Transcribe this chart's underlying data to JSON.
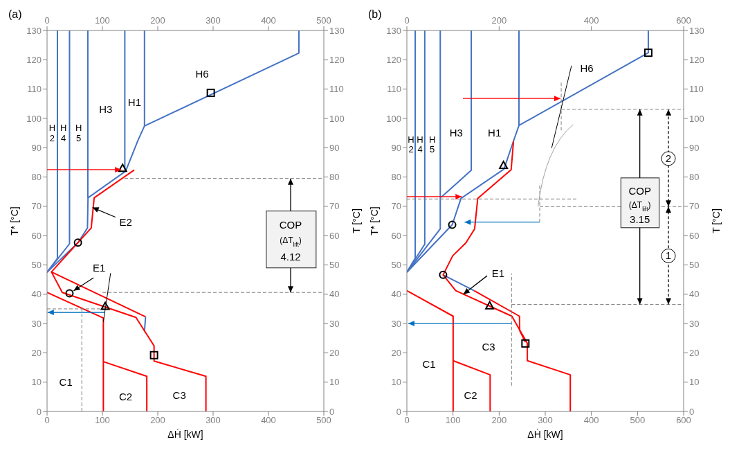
{
  "chart_data": [
    {
      "type": "line",
      "title": "(a)",
      "xlabel": "ΔḢ [kW]",
      "ylabel": "T* [°C]",
      "y2label": "T [°C]",
      "xlim": [
        0,
        500
      ],
      "xticks": [
        0,
        100,
        200,
        300,
        400,
        500
      ],
      "x2lim": [
        0,
        500
      ],
      "x2ticks": [
        0,
        100,
        200,
        300,
        400,
        500
      ],
      "ylim": [
        0,
        130
      ],
      "yticks": [
        0,
        10,
        20,
        30,
        40,
        50,
        60,
        70,
        80,
        90,
        100,
        110,
        120,
        130
      ],
      "y2lim": [
        0,
        130
      ],
      "y2ticks": [
        0,
        10,
        20,
        30,
        40,
        50,
        60,
        70,
        80,
        90,
        100,
        110,
        120,
        130
      ],
      "series": [
        {
          "color": "#4472c4",
          "x": [
            455,
            455,
            176,
            164,
            142,
            74,
            73,
            56,
            0
          ],
          "values": [
            130,
            122.3,
            97.4,
            92.4,
            82,
            72.9,
            62.6,
            57.6,
            47.5
          ]
        },
        {
          "color": "#4472c4",
          "x": [
            176,
            176
          ],
          "values": [
            130,
            97.4
          ]
        },
        {
          "color": "#4472c4",
          "x": [
            140.5,
            140.5
          ],
          "values": [
            130,
            82.4
          ]
        },
        {
          "color": "#4472c4",
          "x": [
            73.7,
            73.7
          ],
          "values": [
            130,
            72.9
          ]
        },
        {
          "color": "#4472c4",
          "x": [
            40.6,
            40.6,
            0
          ],
          "values": [
            130,
            57.2,
            47.5
          ]
        },
        {
          "color": "#4472c4",
          "x": [
            18.7,
            18.7,
            0
          ],
          "values": [
            130,
            52.2,
            47.5
          ]
        },
        {
          "color": "#4472c4",
          "x": [
            178,
            176
          ],
          "values": [
            32.3,
            27.3
          ]
        },
        {
          "color": "#ff0000",
          "x": [
            287,
            287,
            193.3,
            193.3,
            160.6,
            27.5,
            7.9,
            79.8,
            85.1,
            157.6
          ],
          "values": [
            0,
            12,
            17.2,
            22.4,
            32.1,
            40.6,
            47.6,
            62.6,
            72.9,
            82.4
          ]
        },
        {
          "color": "#ff0000",
          "x": [
            7.9,
            178
          ],
          "values": [
            47.6,
            32.3
          ]
        },
        {
          "color": "#ff0000",
          "x": [
            0,
            101.7,
            101.7
          ],
          "values": [
            40.6,
            31.9,
            0
          ]
        },
        {
          "color": "#ff0000",
          "x": [
            101.7,
            180.2,
            180.2
          ],
          "values": [
            17,
            12,
            0
          ]
        },
        {
          "color": "#808080",
          "line_style": "dashed",
          "x": [
            140,
            500
          ],
          "values": [
            79.5,
            79.5
          ]
        },
        {
          "color": "#808080",
          "line_style": "dashed",
          "x": [
            100,
            500
          ],
          "values": [
            40.6,
            40.6
          ]
        },
        {
          "color": "#808080",
          "line_style": "dashed",
          "x": [
            0,
            106
          ],
          "values": [
            35,
            35
          ]
        },
        {
          "color": "#808080",
          "line_style": "dashed",
          "x": [
            62.8,
            62.8
          ],
          "values": [
            0,
            35
          ]
        },
        {
          "type": "scatter",
          "marker": "triangle",
          "color": "#000000",
          "x": [
            136.5,
            105.1
          ],
          "values": [
            82.9,
            35.8
          ]
        },
        {
          "type": "scatter",
          "marker": "square",
          "color": "#000000",
          "x": [
            295.8,
            193.3
          ],
          "values": [
            108.7,
            19.2
          ]
        },
        {
          "type": "scatter",
          "marker": "circle",
          "color": "#000000",
          "x": [
            55.8,
            40.6
          ],
          "values": [
            57.6,
            40.3
          ]
        }
      ],
      "annotations": [
        "H6",
        "H1",
        "H3",
        "H2",
        "H4",
        "H5",
        {
          "text": "E2",
          "x": 82,
          "y": 69.6
        },
        {
          "text": "E1",
          "x": 40.6,
          "y": 40.3
        },
        "C1",
        "C2",
        "C3",
        {
          "text": "COP",
          "x": 440,
          "y": 79.5
        },
        "(ΔT$_{lift}$)",
        {
          "text": "4.12",
          "x": 440,
          "y": 40.6
        }
      ]
    },
    {
      "type": "line",
      "title": "(b)",
      "xlabel": "ΔḢ [kW]",
      "ylabel": "T* [°C]",
      "y2label": "T [°C]",
      "xlim": [
        0,
        600
      ],
      "xticks": [
        0,
        100,
        200,
        300,
        400,
        500,
        600
      ],
      "x2lim": [
        0,
        600
      ],
      "x2ticks": [
        0,
        200,
        400,
        600
      ],
      "ylim": [
        0,
        130
      ],
      "yticks": [
        0,
        10,
        20,
        30,
        40,
        50,
        60,
        70,
        80,
        90,
        100,
        110,
        120,
        130
      ],
      "y2lim": [
        0,
        130
      ],
      "y2ticks": [
        0,
        10,
        20,
        30,
        40,
        50,
        60,
        70,
        80,
        90,
        100,
        110,
        120,
        130
      ],
      "series": [
        {
          "color": "#4472c4",
          "x": [
            523.4,
            523.4,
            243,
            231.2,
            210.5,
            117.4,
            98.3,
            0
          ],
          "values": [
            130,
            122.4,
            97.6,
            92.3,
            82.7,
            72.7,
            63.7,
            47.5
          ]
        },
        {
          "color": "#4472c4",
          "x": [
            243,
            243
          ],
          "values": [
            130,
            97.6
          ]
        },
        {
          "color": "#4472c4",
          "x": [
            139.6,
            139.6,
            74.5
          ],
          "values": [
            130,
            82.3,
            73.1
          ]
        },
        {
          "color": "#4472c4",
          "x": [
            72.4,
            72.4,
            0
          ],
          "values": [
            130,
            62.3,
            47.5
          ]
        },
        {
          "color": "#4472c4",
          "x": [
            38.8,
            38.8,
            0
          ],
          "values": [
            130,
            57.1,
            47.5
          ]
        },
        {
          "color": "#4472c4",
          "x": [
            18.1,
            18.1,
            0
          ],
          "values": [
            130,
            52.3,
            47.5
          ]
        },
        {
          "color": "#4472c4",
          "x": [
            78.6,
            145.8
          ],
          "values": [
            46.6,
            41.2
          ]
        },
        {
          "color": "#ff0000",
          "x": [
            354.3,
            354.3,
            261.2,
            261.2,
            227.6,
            106,
            78.6,
            99.3,
            127.8,
            146.9,
            153.6,
            226.1,
            231.2
          ],
          "values": [
            0,
            12.5,
            17.3,
            23.2,
            32.5,
            41.2,
            46.6,
            53.1,
            57.5,
            62.3,
            72.7,
            82.5,
            92.3
          ]
        },
        {
          "color": "#ff0000",
          "x": [
            145.8,
            244.1,
            244.6,
            257
          ],
          "values": [
            41.2,
            32.5,
            27.6,
            23.6
          ]
        },
        {
          "color": "#ff0000",
          "x": [
            0,
            100.3,
            100.3
          ],
          "values": [
            41.2,
            32.5,
            0
          ]
        },
        {
          "color": "#ff0000",
          "x": [
            100.3,
            180.5,
            180.5
          ],
          "values": [
            17.3,
            12.5,
            0
          ]
        },
        {
          "color": "#808080",
          "line_style": "dashed",
          "x": [
            334.6,
            600
          ],
          "values": [
            103.1,
            103.1
          ]
        },
        {
          "color": "#808080",
          "line_style": "dashed",
          "x": [
            334.6,
            334.6
          ],
          "values": [
            95.9,
            112.3
          ]
        },
        {
          "color": "#808080",
          "line_style": "dashed",
          "x": [
            0,
            370.8
          ],
          "values": [
            72.5,
            72.5
          ]
        },
        {
          "color": "#808080",
          "line_style": "dashed",
          "x": [
            288,
            600
          ],
          "values": [
            69.9,
            69.9
          ]
        },
        {
          "color": "#808080",
          "line_style": "dashed",
          "x": [
            288,
            288
          ],
          "values": [
            64.6,
            77.9
          ]
        },
        {
          "color": "#808080",
          "line_style": "dashed",
          "x": [
            227,
            227
          ],
          "values": [
            8.8,
            47.1
          ]
        },
        {
          "color": "#808080",
          "line_style": "dashed",
          "x": [
            227,
            600
          ],
          "values": [
            36.5,
            36.5
          ]
        },
        {
          "type": "scatter",
          "marker": "triangle",
          "color": "#000000",
          "x": [
            209.5,
            179.5
          ],
          "values": [
            83.9,
            36
          ]
        },
        {
          "type": "scatter",
          "marker": "square",
          "color": "#000000",
          "x": [
            523.4,
            257
          ],
          "values": [
            122.4,
            23.2
          ]
        },
        {
          "type": "scatter",
          "marker": "circle",
          "color": "#000000",
          "x": [
            98.3,
            78.6
          ],
          "values": [
            63.7,
            46.6
          ]
        }
      ],
      "annotations": [
        "H6",
        "H1",
        "H3",
        "H2",
        "H4",
        "H5",
        {
          "text": "E1",
          "x": 122.6,
          "y": 40
        },
        "C1",
        "C2",
        "C3",
        "2",
        "1",
        {
          "text": "COP",
          "x": 505,
          "y": 103.1
        },
        "(ΔT$_{lift}$)",
        {
          "text": "3.15",
          "x": 505,
          "y": 36.5
        }
      ]
    }
  ]
}
